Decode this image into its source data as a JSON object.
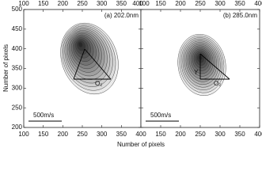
{
  "xlabel": "Number of pixels",
  "ylabel": "Number of pixels",
  "chart_data": [
    {
      "type": "image",
      "title": "(a) 202.0nm",
      "scale_label": "500m/s",
      "vector_labels": [
        "O₂"
      ],
      "xlim": [
        100,
        400
      ],
      "xticks": [
        100,
        150,
        200,
        250,
        300,
        350,
        400
      ],
      "ylim": [
        200,
        500
      ],
      "yticks": [
        200,
        250,
        300,
        350,
        400,
        450,
        500
      ]
    },
    {
      "type": "image",
      "title": "(b) 285.0nm",
      "scale_label": "500m/s",
      "vector_labels": [
        "Y",
        "O₂"
      ],
      "xlim": [
        100,
        400
      ],
      "xticks": [
        100,
        150,
        200,
        250,
        300,
        350,
        400
      ],
      "ylim": [
        200,
        500
      ],
      "yticks": [
        200,
        250,
        300,
        350,
        400,
        450,
        500
      ]
    }
  ]
}
